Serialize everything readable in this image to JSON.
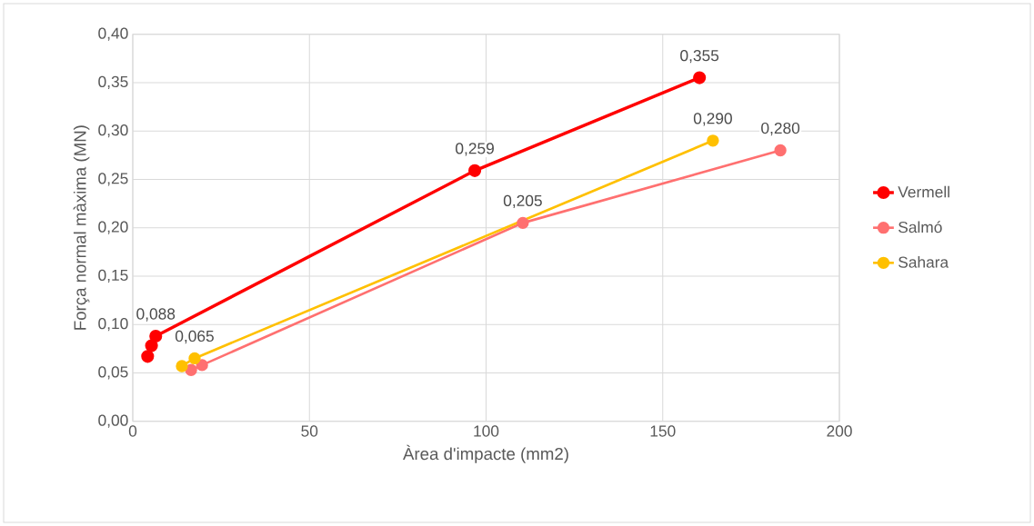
{
  "chart_data": {
    "type": "line",
    "xlabel": "Àrea d'impacte (mm2)",
    "ylabel": "Força normal màxima (MN)",
    "xlim": [
      0,
      200
    ],
    "xticks": [
      0,
      50,
      100,
      150,
      200
    ],
    "ylim": [
      0,
      0.4
    ],
    "yticks": [
      {
        "value": 0,
        "label": "0,00"
      },
      {
        "value": 0.05,
        "label": "0,05"
      },
      {
        "value": 0.1,
        "label": "0,10"
      },
      {
        "value": 0.15,
        "label": "0,15"
      },
      {
        "value": 0.2,
        "label": "0,20"
      },
      {
        "value": 0.25,
        "label": "0,25"
      },
      {
        "value": 0.3,
        "label": "0,30"
      },
      {
        "value": 0.35,
        "label": "0,35"
      },
      {
        "value": 0.4,
        "label": "0,40"
      }
    ],
    "grid": true,
    "legend": "right",
    "marker": "circle",
    "line_style": "solid",
    "series": [
      {
        "name": "Vermell",
        "color": "#ff0000",
        "x": [
          4.2,
          5.3,
          6.5,
          96.8,
          160.4
        ],
        "values": [
          0.067,
          0.078,
          0.088,
          0.259,
          0.355
        ],
        "value_labels": [
          null,
          null,
          "0,088",
          "0,259",
          "0,355"
        ]
      },
      {
        "name": "Salmó",
        "color": "#ff7070",
        "x": [
          16.5,
          19.6,
          110.4,
          183.3
        ],
        "values": [
          0.053,
          0.058,
          0.205,
          0.28
        ],
        "value_labels": [
          null,
          null,
          "0,205",
          "0,280"
        ]
      },
      {
        "name": "Sahara",
        "color": "#ffc000",
        "x": [
          13.9,
          17.5,
          164.2
        ],
        "values": [
          0.057,
          0.065,
          0.29
        ],
        "value_labels": [
          null,
          "0,065",
          "0,290"
        ]
      }
    ]
  }
}
